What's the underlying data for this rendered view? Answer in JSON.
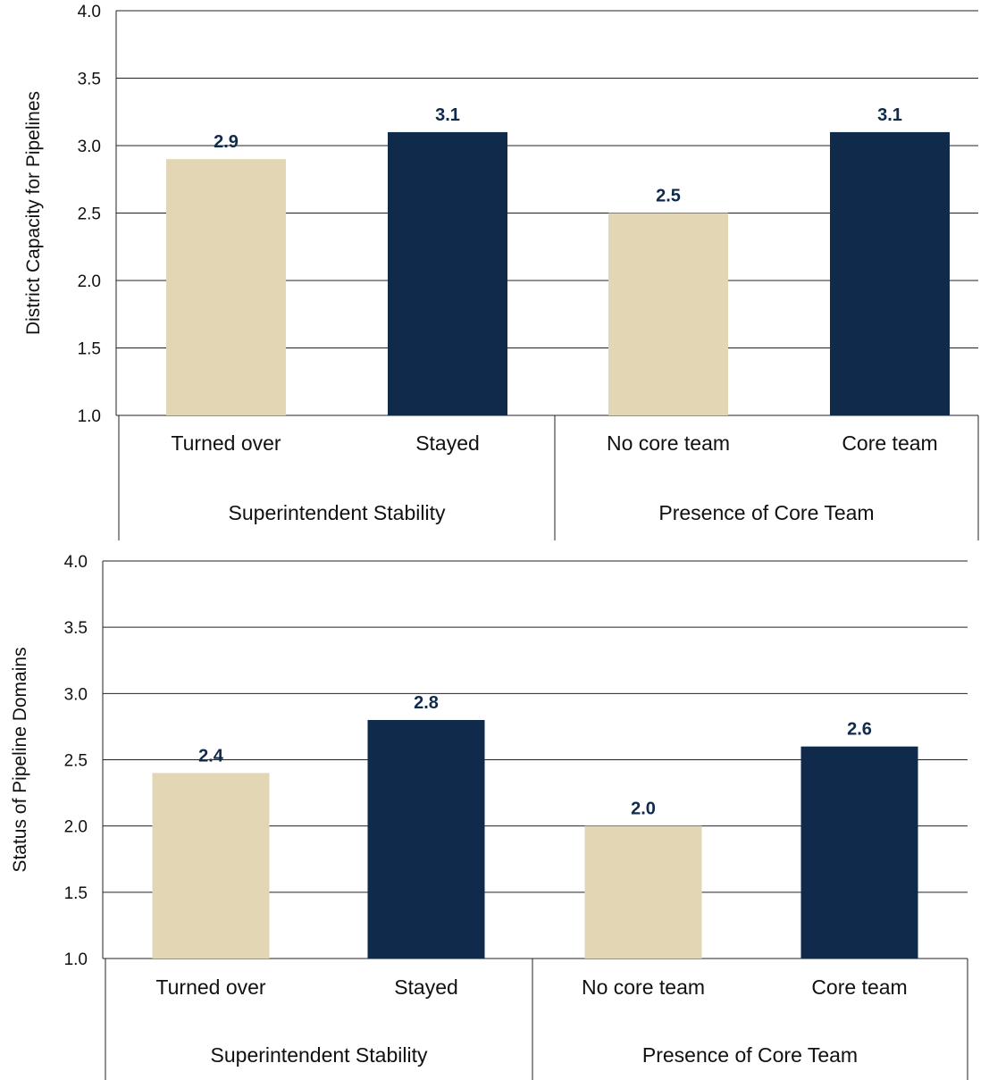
{
  "colors": {
    "beige": "#e2d6b5",
    "navy": "#0f2a4b",
    "grid": "#222222",
    "label": "#0f2a4b"
  },
  "chart_data": [
    {
      "type": "bar",
      "title": "",
      "ylabel": "District Capacity for Pipelines",
      "ylim": [
        1.0,
        4.0
      ],
      "yticks": [
        "1.0",
        "1.5",
        "2.0",
        "2.5",
        "3.0",
        "3.5",
        "4.0"
      ],
      "grid": true,
      "categories": [
        "Turned over",
        "Stayed",
        "No core team",
        "Core team"
      ],
      "groups": [
        {
          "label": "Superintendent Stability",
          "categories": [
            "Turned over",
            "Stayed"
          ]
        },
        {
          "label": "Presence of Core Team",
          "categories": [
            "No core team",
            "Core team"
          ]
        }
      ],
      "values": [
        2.9,
        3.1,
        2.5,
        3.1
      ],
      "value_labels": [
        "2.9",
        "3.1",
        "2.5",
        "3.1"
      ],
      "bar_colors": [
        "beige",
        "navy",
        "beige",
        "navy"
      ]
    },
    {
      "type": "bar",
      "title": "",
      "ylabel": "Status of Pipeline Domains",
      "ylim": [
        1.0,
        4.0
      ],
      "yticks": [
        "1.0",
        "1.5",
        "2.0",
        "2.5",
        "3.0",
        "3.5",
        "4.0"
      ],
      "grid": true,
      "categories": [
        "Turned over",
        "Stayed",
        "No core team",
        "Core team"
      ],
      "groups": [
        {
          "label": "Superintendent Stability",
          "categories": [
            "Turned over",
            "Stayed"
          ]
        },
        {
          "label": "Presence of Core Team",
          "categories": [
            "No core team",
            "Core team"
          ]
        }
      ],
      "values": [
        2.4,
        2.8,
        2.0,
        2.6
      ],
      "value_labels": [
        "2.4",
        "2.8",
        "2.0",
        "2.6"
      ],
      "bar_colors": [
        "beige",
        "navy",
        "beige",
        "navy"
      ]
    }
  ]
}
